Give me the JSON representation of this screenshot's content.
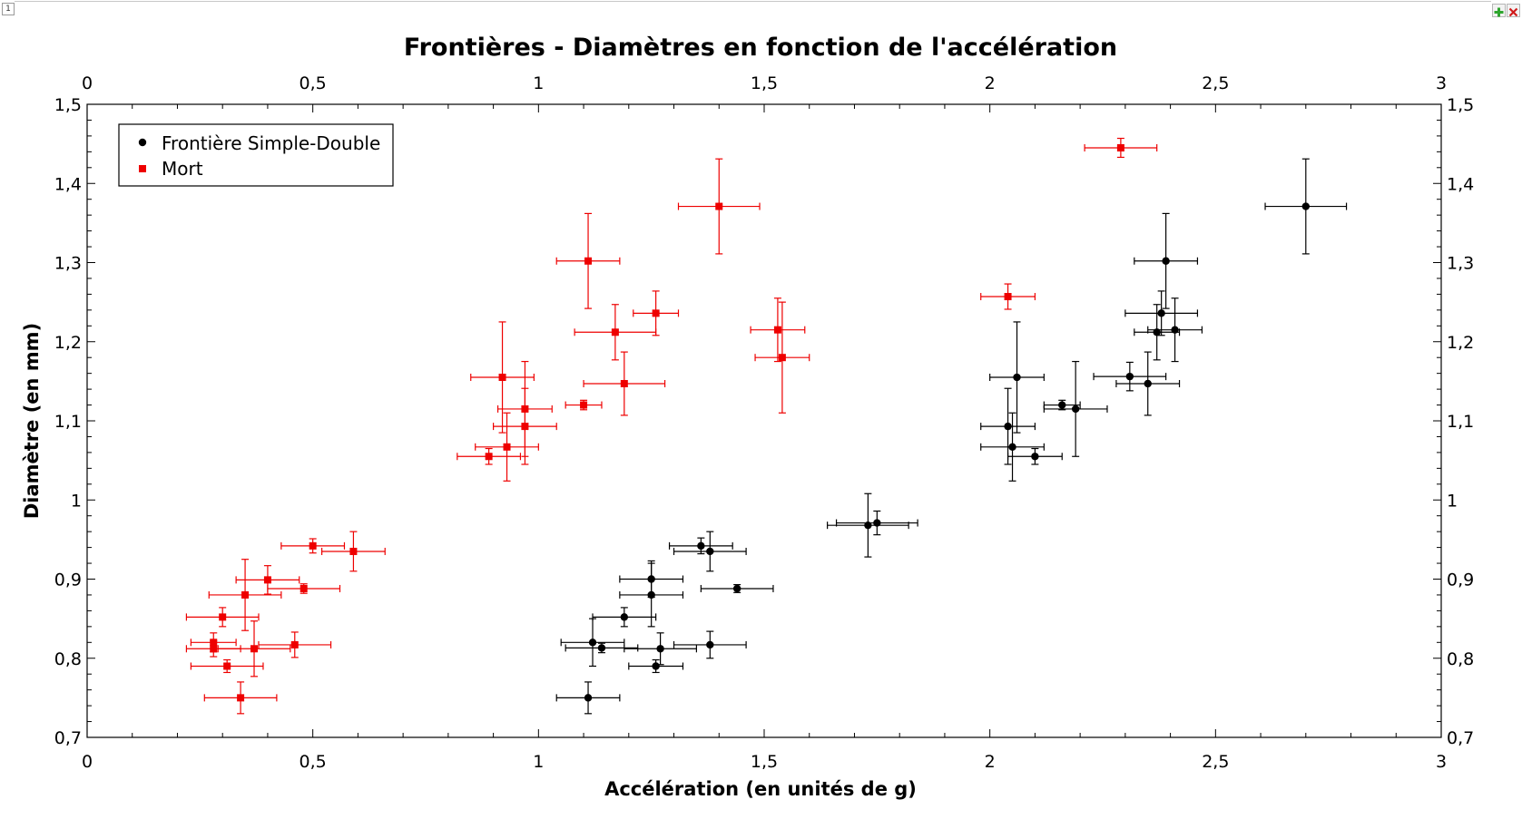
{
  "window": {
    "frame_number": "1",
    "add_icon": "plus-icon",
    "close_icon": "close-icon",
    "add_color": "#2ea52e",
    "close_color": "#d11a1a"
  },
  "chart_data": {
    "type": "scatter",
    "title": "Frontières - Diamètres en fonction de l'accélération",
    "xlabel": "Accélération (en unités de g)",
    "ylabel": "Diamètre (en mm)",
    "xlim": [
      0,
      3
    ],
    "ylim": [
      0.7,
      1.5
    ],
    "x_ticks": [
      "0",
      "0,5",
      "1",
      "1,5",
      "2",
      "2,5",
      "3"
    ],
    "y_ticks": [
      "0,7",
      "0,8",
      "0,9",
      "1",
      "1,1",
      "1,2",
      "1,3",
      "1,4",
      "1,5"
    ],
    "top_axis_mirrors_bottom": true,
    "right_axis_mirrors_left": true,
    "grid": false,
    "legend_position": "top-left",
    "error_bars": true,
    "series": [
      {
        "name": "Frontière Simple-Double",
        "marker": "circle",
        "color": "#000000",
        "points": [
          {
            "x": 1.11,
            "y": 0.75,
            "xerr": 0.07,
            "yerr": 0.02
          },
          {
            "x": 1.12,
            "y": 0.82,
            "xerr": 0.07,
            "yerr": 0.03
          },
          {
            "x": 1.14,
            "y": 0.813,
            "xerr": 0.08,
            "yerr": 0.006
          },
          {
            "x": 1.19,
            "y": 0.852,
            "xerr": 0.07,
            "yerr": 0.012
          },
          {
            "x": 1.25,
            "y": 0.9,
            "xerr": 0.07,
            "yerr": 0.023
          },
          {
            "x": 1.25,
            "y": 0.88,
            "xerr": 0.07,
            "yerr": 0.04
          },
          {
            "x": 1.26,
            "y": 0.79,
            "xerr": 0.06,
            "yerr": 0.008
          },
          {
            "x": 1.27,
            "y": 0.812,
            "xerr": 0.08,
            "yerr": 0.02
          },
          {
            "x": 1.36,
            "y": 0.942,
            "xerr": 0.07,
            "yerr": 0.01
          },
          {
            "x": 1.38,
            "y": 0.935,
            "xerr": 0.08,
            "yerr": 0.025
          },
          {
            "x": 1.38,
            "y": 0.817,
            "xerr": 0.08,
            "yerr": 0.017
          },
          {
            "x": 1.44,
            "y": 0.888,
            "xerr": 0.08,
            "yerr": 0.005
          },
          {
            "x": 1.73,
            "y": 0.968,
            "xerr": 0.09,
            "yerr": 0.04
          },
          {
            "x": 1.75,
            "y": 0.971,
            "xerr": 0.09,
            "yerr": 0.015
          },
          {
            "x": 2.04,
            "y": 1.093,
            "xerr": 0.06,
            "yerr": 0.048
          },
          {
            "x": 2.05,
            "y": 1.067,
            "xerr": 0.07,
            "yerr": 0.043
          },
          {
            "x": 2.06,
            "y": 1.155,
            "xerr": 0.06,
            "yerr": 0.07
          },
          {
            "x": 2.1,
            "y": 1.055,
            "xerr": 0.06,
            "yerr": 0.01
          },
          {
            "x": 2.16,
            "y": 1.12,
            "xerr": 0.04,
            "yerr": 0.006
          },
          {
            "x": 2.19,
            "y": 1.115,
            "xerr": 0.07,
            "yerr": 0.06
          },
          {
            "x": 2.31,
            "y": 1.156,
            "xerr": 0.08,
            "yerr": 0.018
          },
          {
            "x": 2.35,
            "y": 1.147,
            "xerr": 0.07,
            "yerr": 0.04
          },
          {
            "x": 2.37,
            "y": 1.212,
            "xerr": 0.05,
            "yerr": 0.035
          },
          {
            "x": 2.38,
            "y": 1.236,
            "xerr": 0.08,
            "yerr": 0.028
          },
          {
            "x": 2.39,
            "y": 1.302,
            "xerr": 0.07,
            "yerr": 0.06
          },
          {
            "x": 2.41,
            "y": 1.215,
            "xerr": 0.06,
            "yerr": 0.04
          },
          {
            "x": 2.7,
            "y": 1.371,
            "xerr": 0.09,
            "yerr": 0.06
          }
        ]
      },
      {
        "name": "Mort",
        "marker": "square",
        "color": "#ee0000",
        "points": [
          {
            "x": 0.28,
            "y": 0.82,
            "xerr": 0.05,
            "yerr": 0.012
          },
          {
            "x": 0.28,
            "y": 0.812,
            "xerr": 0.06,
            "yerr": 0.01
          },
          {
            "x": 0.3,
            "y": 0.852,
            "xerr": 0.08,
            "yerr": 0.012
          },
          {
            "x": 0.31,
            "y": 0.79,
            "xerr": 0.08,
            "yerr": 0.008
          },
          {
            "x": 0.34,
            "y": 0.75,
            "xerr": 0.08,
            "yerr": 0.02
          },
          {
            "x": 0.35,
            "y": 0.88,
            "xerr": 0.08,
            "yerr": 0.045
          },
          {
            "x": 0.37,
            "y": 0.812,
            "xerr": 0.08,
            "yerr": 0.035
          },
          {
            "x": 0.4,
            "y": 0.899,
            "xerr": 0.07,
            "yerr": 0.018
          },
          {
            "x": 0.46,
            "y": 0.817,
            "xerr": 0.08,
            "yerr": 0.016
          },
          {
            "x": 0.48,
            "y": 0.888,
            "xerr": 0.08,
            "yerr": 0.006
          },
          {
            "x": 0.5,
            "y": 0.942,
            "xerr": 0.07,
            "yerr": 0.009
          },
          {
            "x": 0.59,
            "y": 0.935,
            "xerr": 0.07,
            "yerr": 0.025
          },
          {
            "x": 0.89,
            "y": 1.055,
            "xerr": 0.07,
            "yerr": 0.01
          },
          {
            "x": 0.92,
            "y": 1.155,
            "xerr": 0.07,
            "yerr": 0.07
          },
          {
            "x": 0.93,
            "y": 1.067,
            "xerr": 0.07,
            "yerr": 0.043
          },
          {
            "x": 0.97,
            "y": 1.115,
            "xerr": 0.06,
            "yerr": 0.06
          },
          {
            "x": 0.97,
            "y": 1.093,
            "xerr": 0.07,
            "yerr": 0.048
          },
          {
            "x": 1.1,
            "y": 1.12,
            "xerr": 0.04,
            "yerr": 0.006
          },
          {
            "x": 1.11,
            "y": 1.302,
            "xerr": 0.07,
            "yerr": 0.06
          },
          {
            "x": 1.17,
            "y": 1.212,
            "xerr": 0.09,
            "yerr": 0.035
          },
          {
            "x": 1.19,
            "y": 1.147,
            "xerr": 0.09,
            "yerr": 0.04
          },
          {
            "x": 1.26,
            "y": 1.236,
            "xerr": 0.05,
            "yerr": 0.028
          },
          {
            "x": 1.4,
            "y": 1.371,
            "xerr": 0.09,
            "yerr": 0.06
          },
          {
            "x": 1.53,
            "y": 1.215,
            "xerr": 0.06,
            "yerr": 0.04
          },
          {
            "x": 1.54,
            "y": 1.18,
            "xerr": 0.06,
            "yerr": 0.07
          },
          {
            "x": 2.04,
            "y": 1.257,
            "xerr": 0.06,
            "yerr": 0.016
          },
          {
            "x": 2.29,
            "y": 1.445,
            "xerr": 0.08,
            "yerr": 0.012
          }
        ]
      }
    ]
  }
}
